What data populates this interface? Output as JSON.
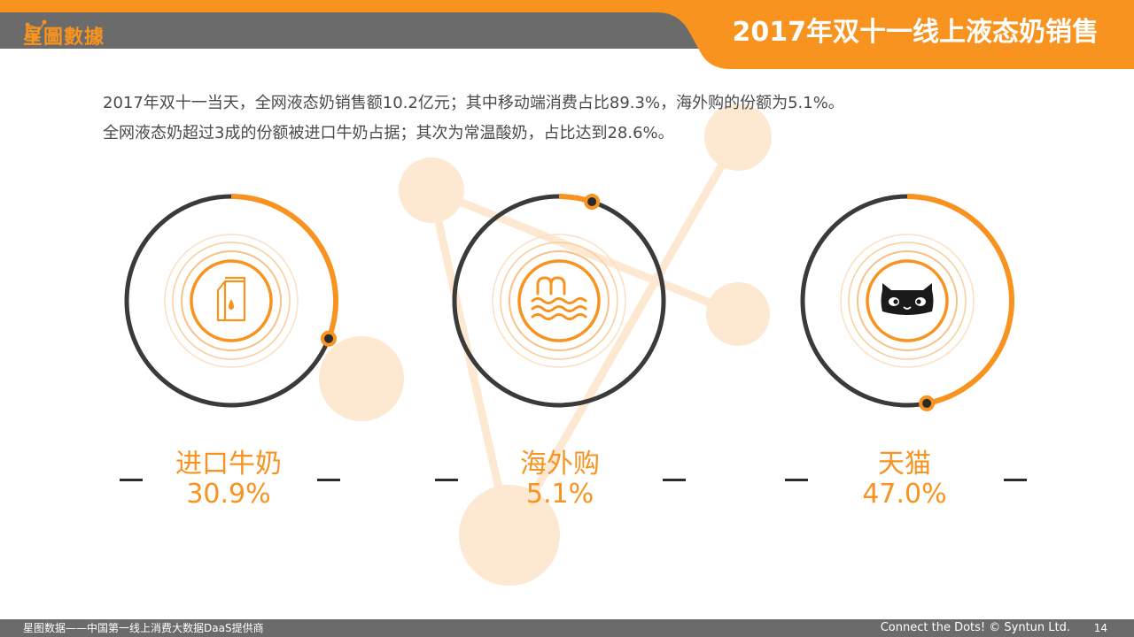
{
  "header": {
    "logo_text": "星圖數據",
    "title": "2017年双十一线上液态奶销售"
  },
  "intro": {
    "line1": "2017年双十一当天，全网液态奶销售额10.2亿元；其中移动端消费占比89.3%，海外购的份额为5.1%。",
    "line2": "全网液态奶超过3成的份额被进口牛奶占据；其次为常温酸奶，占比达到28.6%。"
  },
  "stats": [
    {
      "label": "进口牛奶",
      "value": "30.9%",
      "fraction": 0.309,
      "icon": "milk-carton-icon"
    },
    {
      "label": "海外购",
      "value": "5.1%",
      "fraction": 0.051,
      "icon": "waves-m-icon"
    },
    {
      "label": "天猫",
      "value": "47.0%",
      "fraction": 0.47,
      "icon": "tmall-cat-icon"
    }
  ],
  "footer": {
    "left": "星图数据——中国第一线上消费大数据DaaS提供商",
    "right": "Connect the Dots! © Syntun Ltd.",
    "page": "14"
  },
  "colors": {
    "accent": "#f7931e",
    "ring": "#3a3a3a",
    "header_gray": "#6b6b6b",
    "text": "#4a4a4a"
  }
}
